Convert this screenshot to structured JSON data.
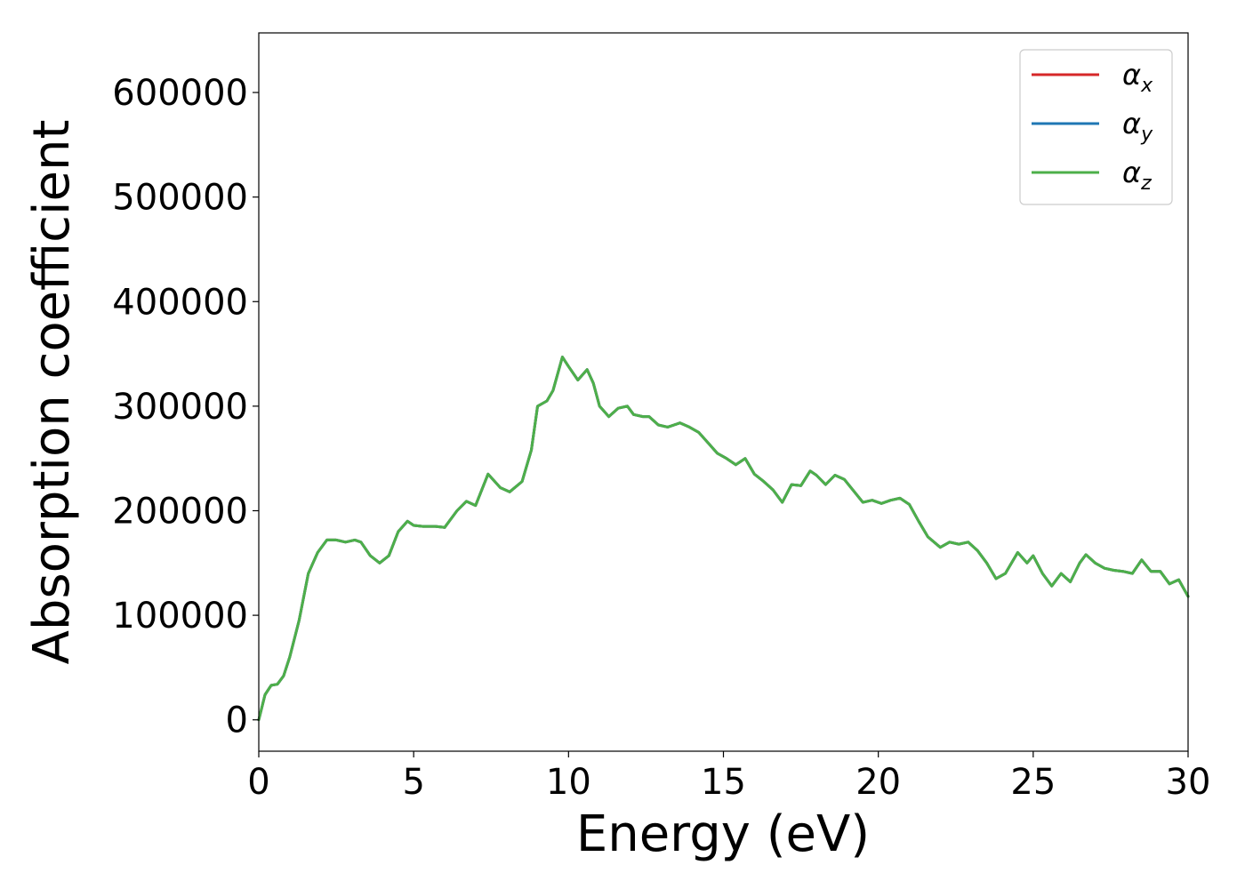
{
  "chart_data": {
    "type": "line",
    "xlabel": "Energy (eV)",
    "ylabel": "Absorption coefficient",
    "xlim": [
      0,
      30
    ],
    "ylim": [
      -30000,
      657000
    ],
    "xticks": [
      "0",
      "5",
      "10",
      "15",
      "20",
      "25",
      "30"
    ],
    "xtick_values": [
      0,
      5,
      10,
      15,
      20,
      25,
      30
    ],
    "yticks": [
      "0",
      "100000",
      "200000",
      "300000",
      "400000",
      "500000",
      "600000"
    ],
    "ytick_values": [
      0,
      100000,
      200000,
      300000,
      400000,
      500000,
      600000
    ],
    "grid": false,
    "legend_position": "top-right",
    "x": [
      0,
      0.2,
      0.4,
      0.6,
      0.8,
      1.0,
      1.3,
      1.6,
      1.9,
      2.2,
      2.5,
      2.8,
      3.1,
      3.3,
      3.6,
      3.9,
      4.2,
      4.5,
      4.8,
      5.0,
      5.3,
      5.7,
      6.0,
      6.4,
      6.7,
      7.0,
      7.4,
      7.8,
      8.1,
      8.5,
      8.8,
      9.0,
      9.3,
      9.5,
      9.8,
      10.0,
      10.3,
      10.6,
      10.8,
      11.0,
      11.3,
      11.6,
      11.9,
      12.1,
      12.4,
      12.6,
      12.9,
      13.2,
      13.6,
      13.9,
      14.2,
      14.5,
      14.8,
      15.1,
      15.4,
      15.7,
      16.0,
      16.3,
      16.6,
      16.9,
      17.2,
      17.5,
      17.8,
      18.0,
      18.3,
      18.6,
      18.9,
      19.2,
      19.5,
      19.8,
      20.1,
      20.4,
      20.7,
      21.0,
      21.3,
      21.6,
      22.0,
      22.3,
      22.6,
      22.9,
      23.2,
      23.5,
      23.8,
      24.1,
      24.5,
      24.8,
      25.0,
      25.3,
      25.6,
      25.9,
      26.2,
      26.5,
      26.7,
      27.0,
      27.3,
      27.6,
      27.9,
      28.2,
      28.5,
      28.8,
      29.1,
      29.4,
      29.7,
      30.0
    ],
    "series": [
      {
        "name": "α_x",
        "color": "#d62728",
        "values": [
          0,
          24000,
          33000,
          34000,
          42000,
          60000,
          95000,
          140000,
          160000,
          172000,
          172000,
          170000,
          172000,
          170000,
          157000,
          150000,
          157000,
          180000,
          190000,
          186000,
          185000,
          185000,
          184000,
          200000,
          209000,
          205000,
          235000,
          222000,
          218000,
          228000,
          258000,
          300000,
          305000,
          315000,
          347000,
          338000,
          325000,
          335000,
          322000,
          300000,
          290000,
          298000,
          300000,
          292000,
          290000,
          290000,
          282000,
          280000,
          284000,
          280000,
          275000,
          265000,
          255000,
          250000,
          244000,
          250000,
          235000,
          228000,
          220000,
          208000,
          225000,
          224000,
          238000,
          234000,
          225000,
          234000,
          230000,
          219000,
          208000,
          210000,
          207000,
          210000,
          212000,
          206000,
          190000,
          175000,
          165000,
          170000,
          168000,
          170000,
          162000,
          150000,
          135000,
          140000,
          160000,
          150000,
          157000,
          140000,
          128000,
          140000,
          132000,
          150000,
          158000,
          150000,
          145000,
          143000,
          142000,
          140000,
          153000,
          142000,
          142000,
          130000,
          134000,
          118000
        ]
      },
      {
        "name": "α_y",
        "color": "#1f77b4",
        "values": [
          0,
          24000,
          33000,
          34000,
          42000,
          60000,
          95000,
          140000,
          160000,
          172000,
          172000,
          170000,
          172000,
          170000,
          157000,
          150000,
          157000,
          180000,
          190000,
          186000,
          185000,
          185000,
          184000,
          200000,
          209000,
          205000,
          235000,
          222000,
          218000,
          228000,
          258000,
          300000,
          305000,
          315000,
          347000,
          338000,
          325000,
          335000,
          322000,
          300000,
          290000,
          298000,
          300000,
          292000,
          290000,
          290000,
          282000,
          280000,
          284000,
          280000,
          275000,
          265000,
          255000,
          250000,
          244000,
          250000,
          235000,
          228000,
          220000,
          208000,
          225000,
          224000,
          238000,
          234000,
          225000,
          234000,
          230000,
          219000,
          208000,
          210000,
          207000,
          210000,
          212000,
          206000,
          190000,
          175000,
          165000,
          170000,
          168000,
          170000,
          162000,
          150000,
          135000,
          140000,
          160000,
          150000,
          157000,
          140000,
          128000,
          140000,
          132000,
          150000,
          158000,
          150000,
          145000,
          143000,
          142000,
          140000,
          153000,
          142000,
          142000,
          130000,
          134000,
          118000
        ]
      },
      {
        "name": "α_z",
        "color": "#4daf4a",
        "values": [
          0,
          24000,
          33000,
          34000,
          42000,
          60000,
          95000,
          140000,
          160000,
          172000,
          172000,
          170000,
          172000,
          170000,
          157000,
          150000,
          157000,
          180000,
          190000,
          186000,
          185000,
          185000,
          184000,
          200000,
          209000,
          205000,
          235000,
          222000,
          218000,
          228000,
          258000,
          300000,
          305000,
          315000,
          347000,
          338000,
          325000,
          335000,
          322000,
          300000,
          290000,
          298000,
          300000,
          292000,
          290000,
          290000,
          282000,
          280000,
          284000,
          280000,
          275000,
          265000,
          255000,
          250000,
          244000,
          250000,
          235000,
          228000,
          220000,
          208000,
          225000,
          224000,
          238000,
          234000,
          225000,
          234000,
          230000,
          219000,
          208000,
          210000,
          207000,
          210000,
          212000,
          206000,
          190000,
          175000,
          165000,
          170000,
          168000,
          170000,
          162000,
          150000,
          135000,
          140000,
          160000,
          150000,
          157000,
          140000,
          128000,
          140000,
          132000,
          150000,
          158000,
          150000,
          145000,
          143000,
          142000,
          140000,
          153000,
          142000,
          142000,
          130000,
          134000,
          118000
        ]
      }
    ],
    "legend": [
      {
        "symbol": "α",
        "subscript": "x",
        "color": "#d62728"
      },
      {
        "symbol": "α",
        "subscript": "y",
        "color": "#1f77b4"
      },
      {
        "symbol": "α",
        "subscript": "z",
        "color": "#4daf4a"
      }
    ]
  }
}
